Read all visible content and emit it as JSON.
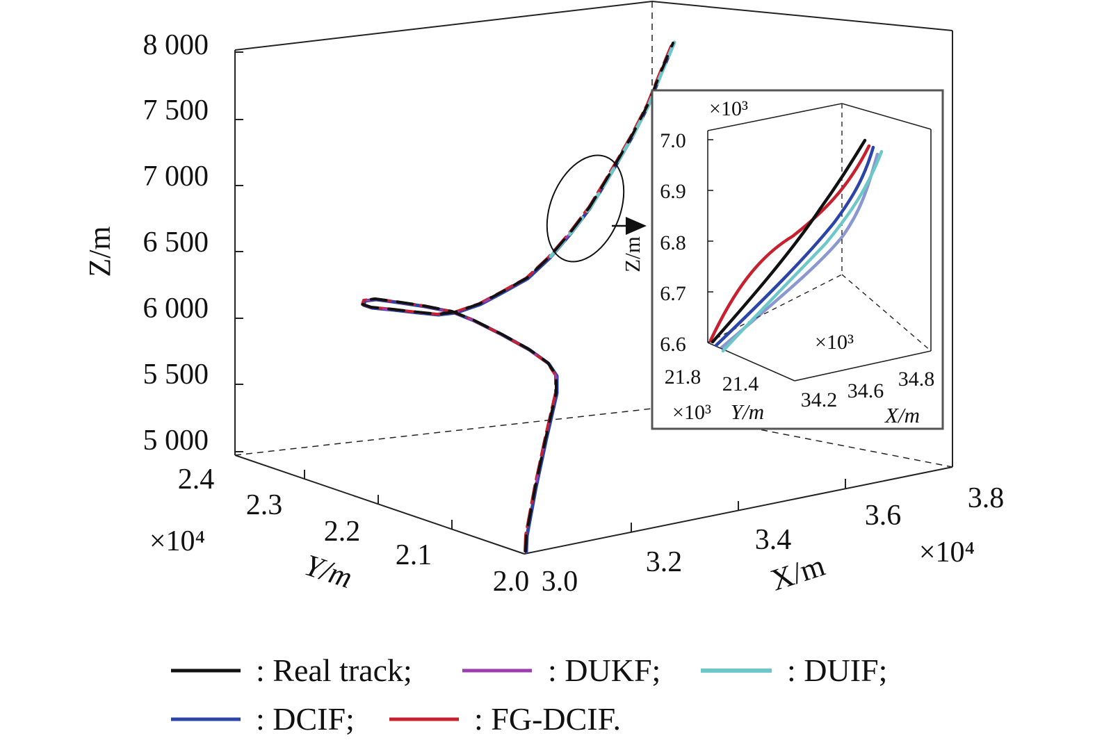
{
  "colors": {
    "Real track": "#111111",
    "DUKF": "#9b3fb0",
    "DUIF": "#6cc8c8",
    "DCIF": "#2b44a8",
    "FG-DCIF": "#c8202e"
  },
  "chart_data": {
    "type": "line",
    "dimensions": 3,
    "main": {
      "xlabel": "X/m",
      "ylabel": "Y/m",
      "zlabel": "Z/m",
      "x_multiplier": "×10⁴",
      "y_multiplier": "×10⁴",
      "x_ticks": [
        "3.0",
        "3.2",
        "3.4",
        "3.6",
        "3.8"
      ],
      "y_ticks": [
        "2.0",
        "2.1",
        "2.2",
        "2.3",
        "2.4"
      ],
      "z_ticks": [
        "5 000",
        "5 500",
        "6 000",
        "6 500",
        "7 000",
        "7 500",
        "8 000"
      ],
      "xlim": [
        30000,
        38000
      ],
      "ylim": [
        20000,
        24000
      ],
      "zlim": [
        5000,
        8000
      ],
      "grid": false,
      "track_points_approx": [
        {
          "x": 30050,
          "y": 20200,
          "z": 5000
        },
        {
          "x": 30900,
          "y": 20200,
          "z": 5550
        },
        {
          "x": 30800,
          "y": 20500,
          "z": 5900
        },
        {
          "x": 29600,
          "y": 21400,
          "z": 6050
        },
        {
          "x": 28800,
          "y": 22800,
          "z": 6150
        },
        {
          "x": 29200,
          "y": 22400,
          "z": 6100
        },
        {
          "x": 30500,
          "y": 21200,
          "z": 6200
        },
        {
          "x": 32500,
          "y": 21300,
          "z": 6550
        },
        {
          "x": 33500,
          "y": 21300,
          "z": 7000
        },
        {
          "x": 34800,
          "y": 21300,
          "z": 7600
        },
        {
          "x": 35600,
          "y": 21300,
          "z": 8000
        }
      ]
    },
    "inset": {
      "xlabel": "X/m",
      "ylabel": "Y/m",
      "zlabel": "Z/m",
      "x_multiplier": "×10³",
      "y_multiplier": "×10³",
      "z_multiplier": "×10³",
      "x_ticks": [
        "34.2",
        "34.6",
        "34.8"
      ],
      "y_ticks": [
        "21.8",
        "21.4"
      ],
      "z_ticks": [
        "6.6",
        "6.7",
        "6.8",
        "6.9",
        "7.0"
      ],
      "zlim": [
        6.6,
        7.0
      ]
    },
    "series": [
      {
        "name": "Real track"
      },
      {
        "name": "DUKF"
      },
      {
        "name": "DUIF"
      },
      {
        "name": "DCIF"
      },
      {
        "name": "FG-DCIF"
      }
    ]
  },
  "legend": {
    "entries": [
      {
        "series": "Real track",
        "text": ": Real track;"
      },
      {
        "series": "DUKF",
        "text": ": DUKF;"
      },
      {
        "series": "DUIF",
        "text": ": DUIF;"
      },
      {
        "series": "DCIF",
        "text": ": DCIF;"
      },
      {
        "series": "FG-DCIF",
        "text": ": FG-DCIF."
      }
    ]
  }
}
